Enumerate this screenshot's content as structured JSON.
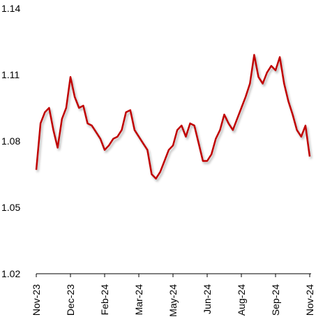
{
  "chart_data": {
    "type": "line",
    "categories": [
      "Nov-23",
      null,
      null,
      null,
      null,
      null,
      null,
      null,
      "Dec-23",
      null,
      null,
      null,
      null,
      null,
      null,
      null,
      "Feb-24",
      null,
      null,
      null,
      null,
      null,
      null,
      null,
      "Mar-24",
      null,
      null,
      null,
      null,
      null,
      null,
      null,
      "May-24",
      null,
      null,
      null,
      null,
      null,
      null,
      null,
      "Jun-24",
      null,
      null,
      null,
      null,
      null,
      null,
      null,
      "Aug-24",
      null,
      null,
      null,
      null,
      null,
      null,
      null,
      "Sep-24",
      null,
      null,
      null,
      null,
      null,
      null,
      null,
      "Nov-24"
    ],
    "values": [
      1.067,
      1.088,
      1.093,
      1.095,
      1.085,
      1.077,
      1.09,
      1.095,
      1.109,
      1.1,
      1.095,
      1.096,
      1.088,
      1.087,
      1.084,
      1.081,
      1.076,
      1.078,
      1.081,
      1.082,
      1.085,
      1.093,
      1.094,
      1.085,
      1.082,
      1.079,
      1.076,
      1.065,
      1.063,
      1.066,
      1.071,
      1.076,
      1.078,
      1.085,
      1.087,
      1.082,
      1.088,
      1.087,
      1.079,
      1.071,
      1.071,
      1.074,
      1.081,
      1.085,
      1.092,
      1.088,
      1.085,
      1.09,
      1.095,
      1.1,
      1.106,
      1.119,
      1.109,
      1.106,
      1.111,
      1.114,
      1.112,
      1.118,
      1.106,
      1.098,
      1.092,
      1.085,
      1.082,
      1.087,
      1.073
    ],
    "color": "#c00000",
    "ylim": [
      1.02,
      1.14
    ],
    "yticks": [
      1.02,
      1.05,
      1.08,
      1.11,
      1.14
    ],
    "grid": false
  }
}
